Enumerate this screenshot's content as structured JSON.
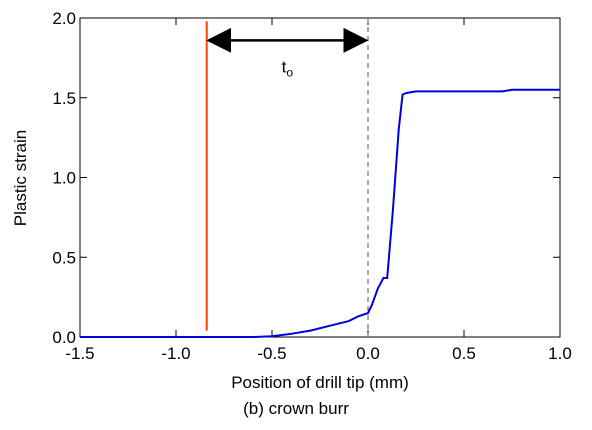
{
  "chart_data": {
    "type": "line",
    "caption": "(b) crown burr",
    "xlabel": "Position of drill tip (mm)",
    "ylabel": "Plastic strain",
    "series": [
      {
        "color": "#0000dd",
        "x": [
          -1.5,
          -0.6,
          -0.5,
          -0.4,
          -0.3,
          -0.2,
          -0.1,
          -0.05,
          0.0,
          0.02,
          0.05,
          0.08,
          0.1,
          0.13,
          0.16,
          0.18,
          0.2,
          0.25,
          0.7,
          0.75,
          1.0
        ],
        "values": [
          0,
          0,
          0.005,
          0.02,
          0.04,
          0.07,
          0.1,
          0.13,
          0.15,
          0.2,
          0.3,
          0.37,
          0.37,
          0.8,
          1.3,
          1.52,
          1.53,
          1.54,
          1.54,
          1.55,
          1.55
        ]
      }
    ],
    "xlim": [
      -1.5,
      1.0
    ],
    "xticks": [
      -1.5,
      {
        "value": -1.0,
        "label": "-1.0"
      },
      -0.5,
      {
        "value": 0,
        "label": "0.0"
      },
      0.5,
      {
        "value": 1,
        "label": "1.0"
      }
    ],
    "ylim": [
      0,
      2
    ],
    "yticks": [
      {
        "value": 0,
        "label": "0.0"
      },
      0.5,
      {
        "value": 1,
        "label": "1.0"
      },
      1.5,
      {
        "value": 2,
        "label": "2.0"
      }
    ],
    "annotations": {
      "red_line_x": -0.84,
      "red_line_color": "#ff4400",
      "dashed_line_x": 0,
      "arrow_from": -0.84,
      "arrow_to": 0,
      "arrow_y": 1.86,
      "arrow_label": "t",
      "arrow_label_subscript": "o"
    }
  }
}
